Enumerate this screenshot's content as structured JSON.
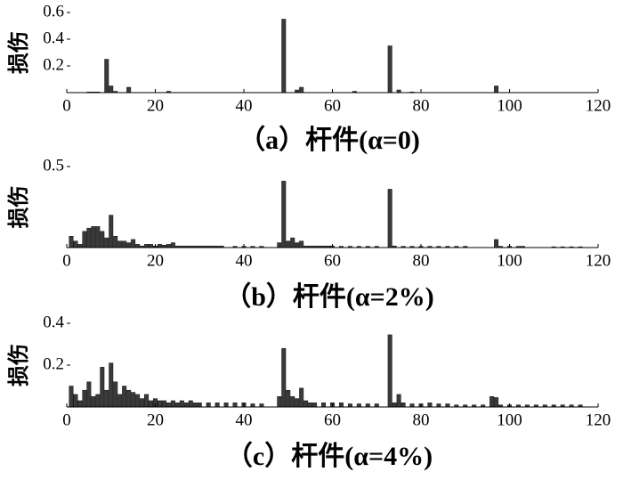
{
  "chart_data": [
    {
      "type": "bar",
      "caption": "（a）杆件(α=0)",
      "ylabel": "损伤",
      "color": "#3a3a3a",
      "x": [
        5,
        6,
        7,
        9,
        10,
        11,
        14,
        23,
        49,
        52,
        53,
        65,
        73,
        75,
        78,
        97
      ],
      "values": [
        0.005,
        0.005,
        0.005,
        0.25,
        0.05,
        0.01,
        0.04,
        0.01,
        0.55,
        0.02,
        0.04,
        0.01,
        0.35,
        0.02,
        0.005,
        0.05
      ],
      "xlim": [
        0,
        120
      ],
      "xticks": [
        0,
        20,
        40,
        60,
        80,
        100,
        120
      ],
      "ylim": [
        0,
        0.6
      ],
      "yticks": [
        0.2,
        0.4,
        0.6
      ]
    },
    {
      "type": "bar",
      "caption": "（b）杆件(α=2%)",
      "ylabel": "损伤",
      "color": "#3a3a3a",
      "x": [
        1,
        2,
        3,
        4,
        5,
        6,
        7,
        8,
        9,
        10,
        11,
        12,
        13,
        14,
        15,
        16,
        17,
        18,
        19,
        20,
        21,
        22,
        23,
        24,
        25,
        26,
        27,
        28,
        29,
        30,
        31,
        32,
        33,
        34,
        35,
        38,
        40,
        42,
        44,
        48,
        49,
        50,
        51,
        52,
        53,
        54,
        55,
        56,
        57,
        58,
        59,
        60,
        62,
        64,
        66,
        68,
        70,
        73,
        74,
        76,
        78,
        80,
        82,
        84,
        86,
        88,
        90,
        97,
        98,
        100,
        102,
        103,
        110,
        112,
        114,
        116
      ],
      "values": [
        0.07,
        0.04,
        0.02,
        0.1,
        0.12,
        0.13,
        0.13,
        0.1,
        0.06,
        0.2,
        0.07,
        0.04,
        0.04,
        0.03,
        0.05,
        0.02,
        0.01,
        0.02,
        0.02,
        0.01,
        0.02,
        0.015,
        0.02,
        0.03,
        0.01,
        0.01,
        0.01,
        0.01,
        0.01,
        0.01,
        0.01,
        0.01,
        0.01,
        0.01,
        0.01,
        0.008,
        0.008,
        0.008,
        0.008,
        0.03,
        0.41,
        0.04,
        0.06,
        0.03,
        0.04,
        0.01,
        0.01,
        0.01,
        0.01,
        0.01,
        0.01,
        0.01,
        0.008,
        0.008,
        0.008,
        0.008,
        0.008,
        0.36,
        0.01,
        0.008,
        0.008,
        0.008,
        0.008,
        0.008,
        0.008,
        0.008,
        0.008,
        0.05,
        0.008,
        0.008,
        0.008,
        0.008,
        0.005,
        0.005,
        0.005,
        0.005
      ],
      "xlim": [
        0,
        120
      ],
      "xticks": [
        0,
        20,
        40,
        60,
        80,
        100,
        120
      ],
      "ylim": [
        0,
        0.5
      ],
      "yticks": [
        0.5
      ]
    },
    {
      "type": "bar",
      "caption": "（c）杆件(α=4%)",
      "ylabel": "损伤",
      "color": "#3a3a3a",
      "x": [
        1,
        2,
        3,
        4,
        5,
        6,
        7,
        8,
        9,
        10,
        11,
        12,
        13,
        14,
        15,
        16,
        17,
        18,
        19,
        20,
        21,
        22,
        23,
        24,
        25,
        26,
        27,
        28,
        29,
        30,
        32,
        34,
        36,
        38,
        40,
        42,
        44,
        48,
        49,
        50,
        51,
        52,
        53,
        54,
        55,
        56,
        58,
        60,
        62,
        64,
        66,
        68,
        70,
        73,
        74,
        75,
        76,
        78,
        80,
        82,
        84,
        86,
        88,
        90,
        92,
        94,
        96,
        97,
        98,
        100,
        102,
        104,
        106,
        108,
        110,
        112,
        114,
        116
      ],
      "values": [
        0.1,
        0.06,
        0.03,
        0.08,
        0.12,
        0.05,
        0.06,
        0.19,
        0.08,
        0.21,
        0.12,
        0.06,
        0.1,
        0.08,
        0.07,
        0.06,
        0.04,
        0.06,
        0.03,
        0.04,
        0.03,
        0.03,
        0.02,
        0.03,
        0.02,
        0.03,
        0.02,
        0.03,
        0.02,
        0.02,
        0.02,
        0.02,
        0.02,
        0.02,
        0.02,
        0.015,
        0.015,
        0.05,
        0.28,
        0.08,
        0.05,
        0.04,
        0.09,
        0.03,
        0.02,
        0.02,
        0.02,
        0.02,
        0.02,
        0.015,
        0.015,
        0.015,
        0.015,
        0.345,
        0.02,
        0.06,
        0.02,
        0.015,
        0.015,
        0.02,
        0.015,
        0.015,
        0.01,
        0.01,
        0.01,
        0.01,
        0.05,
        0.045,
        0.01,
        0.01,
        0.01,
        0.01,
        0.01,
        0.01,
        0.01,
        0.01,
        0.01,
        0.01
      ],
      "xlim": [
        0,
        120
      ],
      "xticks": [
        0,
        20,
        40,
        60,
        80,
        100,
        120
      ],
      "ylim": [
        0,
        0.4
      ],
      "yticks": [
        0.2,
        0.4
      ]
    }
  ]
}
